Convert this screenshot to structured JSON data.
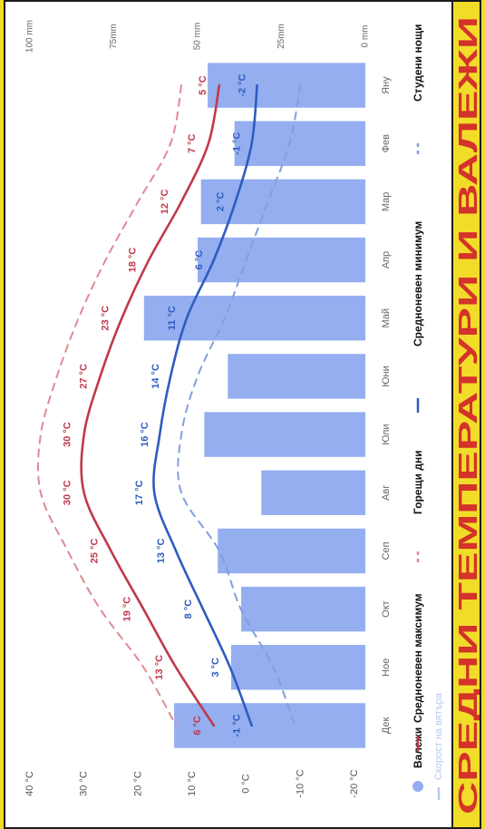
{
  "chart_data": {
    "type": "bar+line",
    "title": "СРЕДНИ ТЕМПЕРАТУРИ И ВАЛЕЖИ",
    "categories": [
      "Яну",
      "Фев",
      "Мар",
      "Апр",
      "Май",
      "Юни",
      "Юли",
      "Авг",
      "Сеп",
      "Окт",
      "Ное",
      "Дек"
    ],
    "temperature_axis": {
      "unit": "°C",
      "ylim": [
        -20,
        40
      ],
      "ticks": [
        40,
        30,
        20,
        10,
        0,
        -10,
        -20
      ],
      "tick_labels": [
        "40 °C",
        "30 °C",
        "20 °C",
        "10 °C",
        "0 °C",
        "-10 °C",
        "-20 °C"
      ]
    },
    "precipitation_axis": {
      "unit": "mm",
      "ylim": [
        0,
        100
      ],
      "ticks": [
        100,
        75,
        50,
        25,
        0
      ],
      "tick_labels": [
        "100 mm",
        "75mm",
        "50 mm",
        "25mm",
        "0 mm"
      ]
    },
    "series": [
      {
        "name": "Валежи",
        "type": "bar",
        "axis": "precipitation",
        "color": "#94aef0",
        "values": [
          47,
          39,
          49,
          50,
          66,
          41,
          48,
          31,
          44,
          37,
          40,
          57
        ]
      },
      {
        "name": "Средноневен максимум",
        "type": "line",
        "axis": "temperature",
        "color": "#c0394b",
        "values": [
          5,
          7,
          12,
          18,
          23,
          27,
          30,
          30,
          25,
          19,
          13,
          6
        ],
        "data_labels": [
          "5 °C",
          "7 °C",
          "12 °C",
          "18 °C",
          "23 °C",
          "27 °C",
          "30 °C",
          "30 °C",
          "25 °C",
          "19 °C",
          "13 °C",
          "6 °C"
        ]
      },
      {
        "name": "Средноневен минимум",
        "type": "line",
        "axis": "temperature",
        "color": "#2f5cbf",
        "values": [
          -2,
          -1,
          2,
          6,
          11,
          14,
          16,
          17,
          13,
          8,
          3,
          -1
        ],
        "data_labels": [
          "-2 °C",
          "-1 °C",
          "2 °C",
          "6 °C",
          "11 °C",
          "14 °C",
          "16 °C",
          "17 °C",
          "13 °C",
          "8 °C",
          "3 °C",
          "-1 °C"
        ]
      },
      {
        "name": "Горещи дни",
        "type": "line",
        "style": "dashed",
        "axis": "temperature",
        "color": "#e08a94",
        "values": [
          12,
          14,
          20,
          26,
          31,
          35,
          38,
          38,
          33,
          27,
          19,
          13
        ]
      },
      {
        "name": "Студени нощи",
        "type": "line",
        "style": "dashed",
        "axis": "temperature",
        "color": "#7fa0dd",
        "values": [
          -10,
          -8,
          -4,
          0,
          4,
          9,
          12,
          12,
          5,
          1,
          -5,
          -9
        ]
      }
    ],
    "legend": {
      "placement": "bottom",
      "entries": [
        "Валежи",
        "Средноневен максимум",
        "Горещи дни",
        "Средноневен минимум",
        "Студени нощи"
      ],
      "extra": "Скорост на вятъра"
    },
    "grid": false
  }
}
